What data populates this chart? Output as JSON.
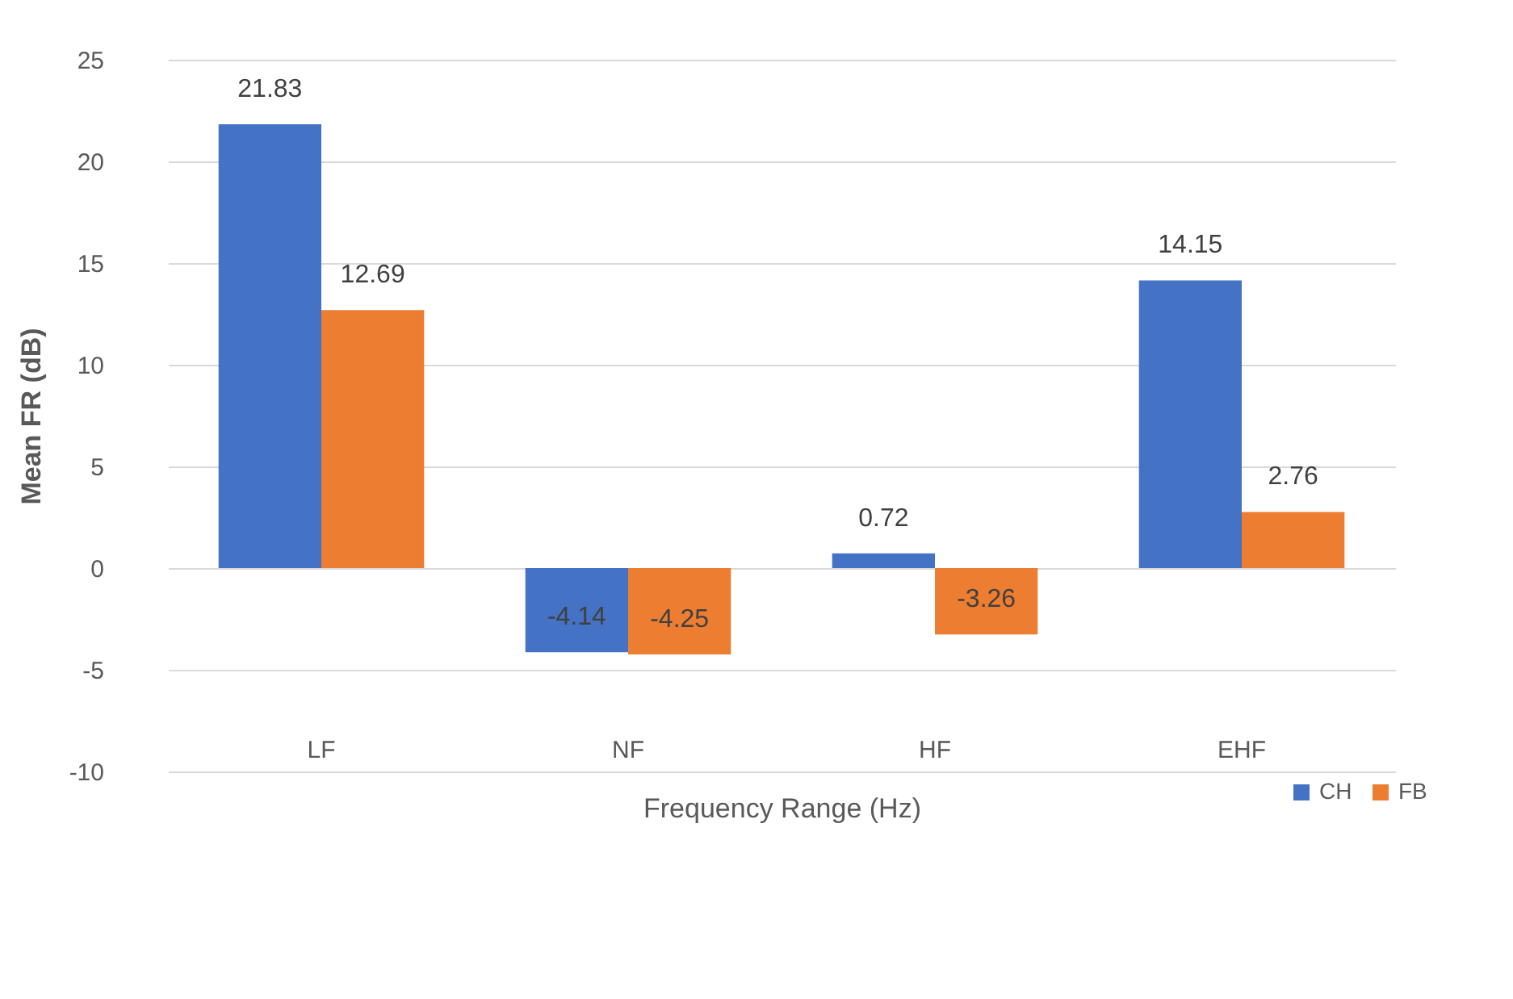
{
  "chart_data": {
    "type": "bar",
    "xlabel": "Frequency Range (Hz)",
    "ylabel": "Mean FR (dB)",
    "categories": [
      "LF",
      "NF",
      "HF",
      "EHF"
    ],
    "series": [
      {
        "name": "CH",
        "color": "#4472c4",
        "values": [
          21.83,
          -4.14,
          0.72,
          14.15
        ]
      },
      {
        "name": "FB",
        "color": "#ed7d31",
        "values": [
          12.69,
          -4.25,
          -3.26,
          2.76
        ]
      }
    ],
    "ylim": [
      -10,
      25
    ],
    "yticks": [
      -10,
      -5,
      0,
      5,
      10,
      15,
      20,
      25
    ],
    "grid": "y",
    "legend": "bottom right",
    "data_labels": true
  }
}
